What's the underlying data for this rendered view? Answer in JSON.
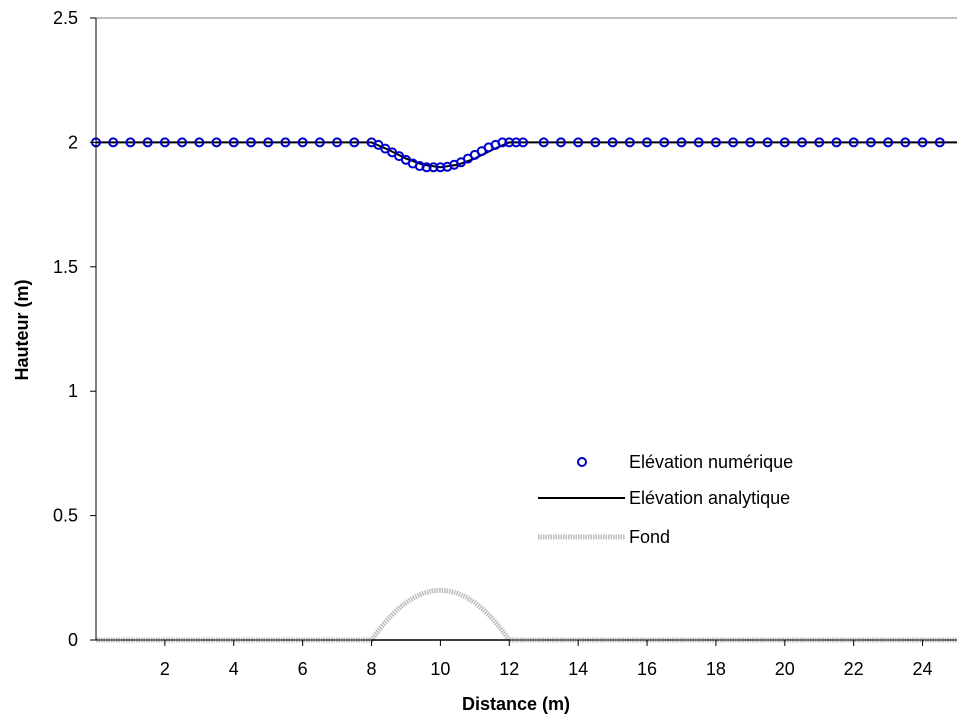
{
  "chart_data": {
    "type": "line",
    "title": "",
    "xlabel": "Distance (m)",
    "ylabel": "Hauteur (m)",
    "xlim": [
      0,
      25
    ],
    "ylim": [
      0,
      2.5
    ],
    "x_ticks": [
      2,
      4,
      6,
      8,
      10,
      12,
      14,
      16,
      18,
      20,
      22,
      24
    ],
    "y_ticks": [
      0,
      0.5,
      1,
      1.5,
      2,
      2.5
    ],
    "x_tick_labels": [
      "2",
      "4",
      "6",
      "8",
      "10",
      "12",
      "14",
      "16",
      "18",
      "20",
      "22",
      "24"
    ],
    "y_tick_labels": [
      "0",
      "0.5",
      "1",
      "1.5",
      "2",
      "2.5"
    ],
    "grid": false,
    "legend_position": "center-right",
    "series": [
      {
        "name": "Elévation numérique",
        "style": "markers",
        "marker": "circle-open",
        "color": "#0000cc",
        "x": [
          0,
          0.5,
          1,
          1.5,
          2,
          2.5,
          3,
          3.5,
          4,
          4.5,
          5,
          5.5,
          6,
          6.5,
          7,
          7.5,
          8,
          8.2,
          8.4,
          8.6,
          8.8,
          9.0,
          9.2,
          9.4,
          9.6,
          9.8,
          10.0,
          10.2,
          10.4,
          10.6,
          10.8,
          11.0,
          11.2,
          11.4,
          11.6,
          11.8,
          12.0,
          12.2,
          12.4,
          13,
          13.5,
          14,
          14.5,
          15,
          15.5,
          16,
          16.5,
          17,
          17.5,
          18,
          18.5,
          19,
          19.5,
          20,
          20.5,
          21,
          21.5,
          22,
          22.5,
          23,
          23.5,
          24,
          24.5
        ],
        "y": [
          2.0,
          2.0,
          2.0,
          2.0,
          2.0,
          2.0,
          2.0,
          2.0,
          2.0,
          2.0,
          2.0,
          2.0,
          2.0,
          2.0,
          2.0,
          2.0,
          2.0,
          1.99,
          1.975,
          1.96,
          1.945,
          1.93,
          1.915,
          1.905,
          1.9,
          1.9,
          1.9,
          1.902,
          1.91,
          1.92,
          1.935,
          1.95,
          1.965,
          1.98,
          1.99,
          2.0,
          2.0,
          2.0,
          2.0,
          2.0,
          2.0,
          2.0,
          2.0,
          2.0,
          2.0,
          2.0,
          2.0,
          2.0,
          2.0,
          2.0,
          2.0,
          2.0,
          2.0,
          2.0,
          2.0,
          2.0,
          2.0,
          2.0,
          2.0,
          2.0,
          2.0,
          2.0,
          2.0
        ]
      },
      {
        "name": "Elévation analytique",
        "style": "line",
        "color": "#000000",
        "x": [
          0,
          8,
          8.5,
          9,
          9.5,
          10,
          10.5,
          11,
          11.5,
          12,
          25
        ],
        "y": [
          2.0,
          2.0,
          1.97,
          1.935,
          1.91,
          1.9,
          1.91,
          1.935,
          1.97,
          2.0,
          2.0
        ]
      },
      {
        "name": "Fond",
        "style": "line",
        "color": "#bdbdbd",
        "x": [
          0,
          8,
          8.25,
          8.5,
          8.75,
          9,
          9.25,
          9.5,
          9.75,
          10,
          10.25,
          10.5,
          10.75,
          11,
          11.25,
          11.5,
          11.75,
          12,
          25
        ],
        "y": [
          0,
          0,
          0.0469,
          0.0875,
          0.1219,
          0.15,
          0.1719,
          0.1875,
          0.1969,
          0.2,
          0.1969,
          0.1875,
          0.1719,
          0.15,
          0.1219,
          0.0875,
          0.0469,
          0,
          0
        ]
      },
      {
        "name": "",
        "style": "line",
        "color": "#000000",
        "x": [
          8,
          12
        ],
        "y": [
          0,
          0
        ]
      }
    ]
  }
}
